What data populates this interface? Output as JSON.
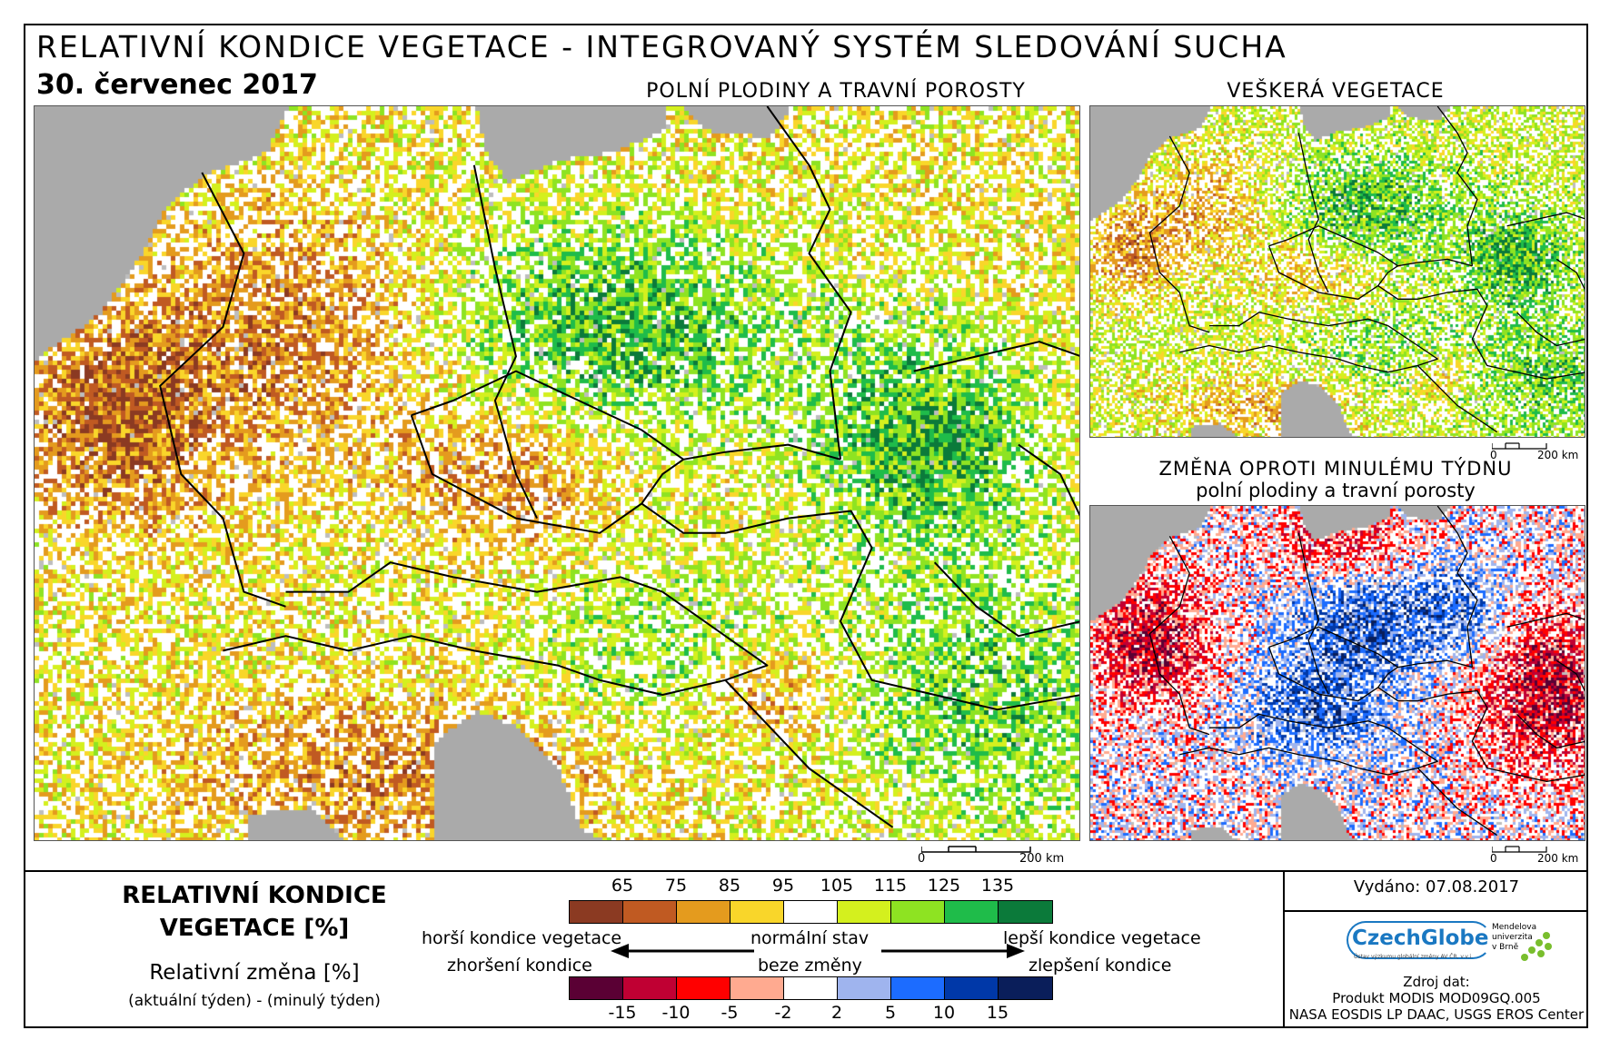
{
  "header": {
    "title": "RELATIVNÍ KONDICE VEGETACE - INTEGROVANÝ SYSTÉM SLEDOVÁNÍ SUCHA",
    "date": "30. červenec 2017"
  },
  "panels": {
    "main": {
      "title": "POLNÍ PLODINY A TRAVNÍ POROSTY",
      "scale_start": "0",
      "scale_end": "200 km"
    },
    "all_vegetation": {
      "title": "VEŠKERÁ VEGETACE",
      "scale_start": "0",
      "scale_end": "200 km"
    },
    "change": {
      "title_line1": "ZMĚNA OPROTI MINULÉMU TÝDNU",
      "title_line2": "polní plodiny a travní porosty",
      "scale_start": "0",
      "scale_end": "200 km"
    }
  },
  "legend": {
    "title_line1": "RELATIVNÍ KONDICE",
    "title_line2": "VEGETACE [%]",
    "change_title": "Relativní změna [%]",
    "change_formula": "(aktuální týden) - (minulý týden)",
    "condition_ticks": [
      "65",
      "75",
      "85",
      "95",
      "105",
      "115",
      "125",
      "135"
    ],
    "condition_colors": [
      "#8b3a22",
      "#c05a22",
      "#e49b1e",
      "#f9d62a",
      "#ffffff",
      "#d4f01e",
      "#8ee322",
      "#1fbc4a",
      "#0b7a3a"
    ],
    "change_ticks": [
      "-15",
      "-10",
      "-5",
      "-2",
      "2",
      "5",
      "10",
      "15"
    ],
    "change_colors": [
      "#5a0034",
      "#c00033",
      "#ff0000",
      "#ffaa90",
      "#ffffff",
      "#9fb4ee",
      "#1c6cff",
      "#0038a8",
      "#0a1e5a"
    ],
    "worse_condition": "horší kondice vegetace",
    "normal_state": "normální stav",
    "better_condition": "lepší kondice vegetace",
    "deterioration": "zhoršení kondice",
    "no_change": "beze změny",
    "improvement": "zlepšení kondice"
  },
  "info": {
    "issued": "Vydáno: 07.08.2017",
    "logo_czechglobe": "CzechGlobe",
    "logo_czechglobe_sub": "Ústav výzkumu globální změny AV ČR, v.v.i.",
    "logo_mendelu": "Mendelova univerzita v Brně",
    "source_label": "Zdroj dat:",
    "source_line1": "Produkt MODIS MOD09GQ.005",
    "source_line2": "NASA EOSDIS LP DAAC, USGS EROS Center"
  },
  "colors": {
    "sea": "#aaaaaa",
    "nodata": "#bdbdbd",
    "border": "#000000"
  }
}
